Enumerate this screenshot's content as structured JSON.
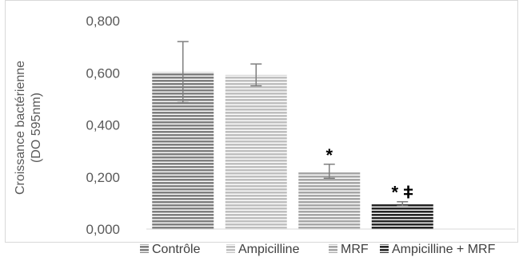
{
  "chart_data": {
    "type": "bar",
    "title": "",
    "xlabel": "",
    "ylabel_lines": [
      "Croissance bactérienne",
      "(DO 595nm)"
    ],
    "ylim": [
      0,
      0.8
    ],
    "yticks": [
      "0,000",
      "0,200",
      "0,400",
      "0,600",
      "0,800"
    ],
    "ytick_values": [
      0,
      0.2,
      0.4,
      0.6,
      0.8
    ],
    "grid": false,
    "legend_position": "bottom",
    "categories": [
      "Contrôle",
      "Ampicilline",
      "MRF",
      "Ampicilline + MRF"
    ],
    "values": [
      0.603,
      0.592,
      0.222,
      0.097
    ],
    "errors": [
      0.117,
      0.042,
      0.027,
      0.008
    ],
    "annotations": [
      "",
      "",
      "*",
      "* ǂ"
    ],
    "colors": [
      {
        "stripe": "#7f7f7f",
        "bg": "#ffffff"
      },
      {
        "stripe": "#bfbfbf",
        "bg": "#ffffff"
      },
      {
        "stripe": "#a6a6a6",
        "bg": "#ffffff"
      },
      {
        "stripe": "#262626",
        "bg": "#ffffff"
      }
    ]
  }
}
